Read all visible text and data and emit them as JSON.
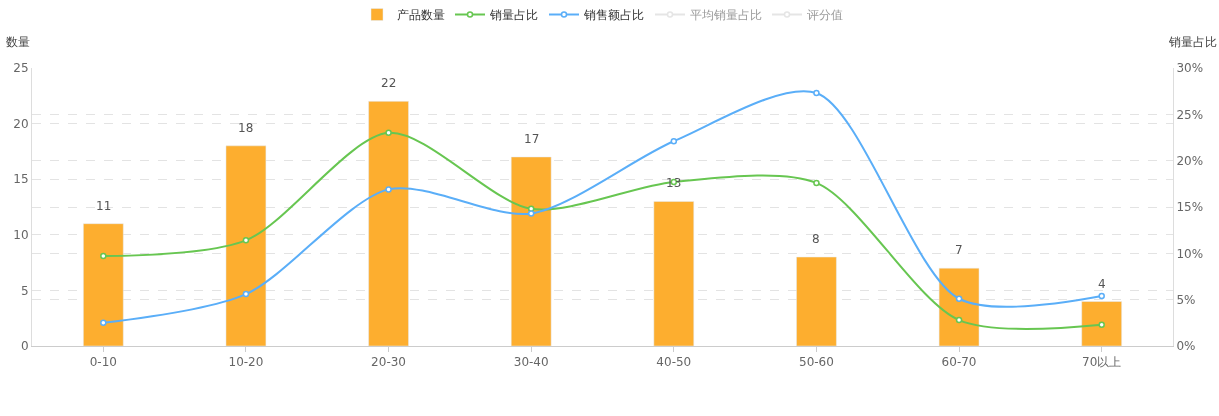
{
  "chart_data": {
    "type": "bar",
    "ylabel": "数量",
    "y2label": "销量占比",
    "categories": [
      "0-10",
      "10-20",
      "20-30",
      "30-40",
      "40-50",
      "50-60",
      "60-70",
      "70以上"
    ],
    "series": [
      {
        "name": "产品数量",
        "color": "#fdae2f",
        "values": [
          11,
          18,
          22,
          17,
          13,
          8,
          7,
          4
        ],
        "value_labels": [
          "11",
          "18",
          "22",
          "17",
          "13",
          "8",
          "7",
          "4"
        ]
      },
      {
        "name": "销量占比",
        "type": "line",
        "axis": "y2",
        "color": "#67c651",
        "values": [
          9.7,
          11.4,
          23.0,
          14.8,
          17.7,
          17.6,
          2.8,
          2.3
        ]
      },
      {
        "name": "销售额占比",
        "type": "line",
        "axis": "y2",
        "color": "#5aaef8",
        "values": [
          2.5,
          5.6,
          16.9,
          14.3,
          22.1,
          27.3,
          5.1,
          5.4
        ]
      },
      {
        "name": "平均销量占比",
        "type": "line",
        "axis": "y2",
        "color": "#cccccc",
        "values": [
          null,
          null,
          null,
          null,
          null,
          null,
          null,
          null
        ]
      },
      {
        "name": "评分值",
        "type": "line",
        "axis": "y2",
        "color": "#cccccc",
        "values": [
          null,
          null,
          null,
          null,
          null,
          null,
          null,
          null
        ]
      }
    ],
    "ylim": [
      0,
      25
    ],
    "yticks": [
      0,
      5,
      10,
      15,
      20,
      25
    ],
    "y2lim": [
      0,
      30
    ],
    "y2ticks": [
      {
        "value": 0,
        "label": "0%"
      },
      {
        "value": 5,
        "label": "5%"
      },
      {
        "value": 10,
        "label": "10%"
      },
      {
        "value": 15,
        "label": "15%"
      },
      {
        "value": 20,
        "label": "20%"
      },
      {
        "value": 25,
        "label": "25%"
      },
      {
        "value": 30,
        "label": "30%"
      }
    ],
    "grid": true,
    "legend": "top",
    "marker": "circle",
    "line_style": "solid"
  }
}
